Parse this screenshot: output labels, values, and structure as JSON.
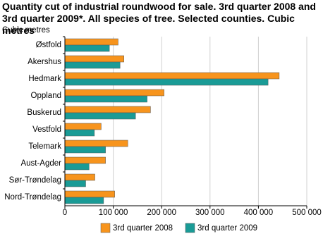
{
  "chart_data": {
    "type": "hbar",
    "title": "Quantity cut of industrial roundwood for sale. 3rd quarter 2008 and 3rd quarter 2009*. All species of tree. Selected counties. Cubic metres",
    "axis_label": "Cubic metres",
    "categories": [
      "Østfold",
      "Akershus",
      "Hedmark",
      "Oppland",
      "Buskerud",
      "Vestfold",
      "Telemark",
      "Aust-Agder",
      "Sør-Trøndelag",
      "Nord-Trøndelag"
    ],
    "series": [
      {
        "name": "3rd quarter 2008",
        "color": "#f7941d",
        "values": [
          110000,
          122000,
          443000,
          205000,
          177000,
          75000,
          130000,
          84000,
          62000,
          103000
        ]
      },
      {
        "name": "3rd quarter 2009",
        "color": "#1a9b96",
        "values": [
          92000,
          114000,
          420000,
          170000,
          146000,
          61000,
          84000,
          50000,
          43000,
          80000
        ]
      }
    ],
    "xlim": [
      0,
      500000
    ],
    "xticks": [
      0,
      {
        "value": 100000,
        "label": "100 000"
      },
      {
        "value": 200000,
        "label": "200 000"
      },
      {
        "value": 300000,
        "label": "300 000"
      },
      {
        "value": 400000,
        "label": "400 000"
      },
      {
        "value": 500000,
        "label": "500 000"
      }
    ],
    "grid": true
  }
}
